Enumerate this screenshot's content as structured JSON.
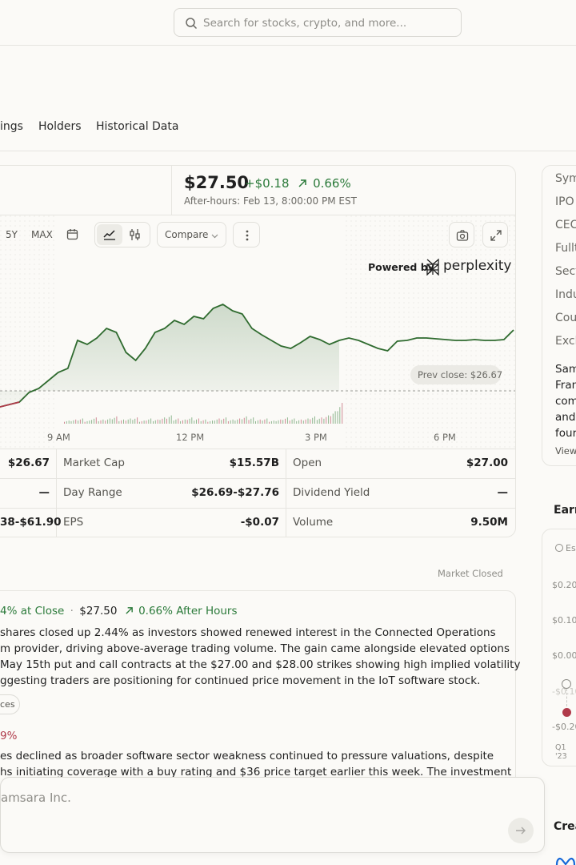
{
  "search": {
    "placeholder": "Search for stocks, crypto, and more..."
  },
  "tabs": [
    "ings",
    "Holders",
    "Historical Data"
  ],
  "quote": {
    "price": "$27.50",
    "change": "+$0.18",
    "change_pct": "0.66%",
    "after_hours": "After-hours: Feb 13, 8:00:00 PM EST"
  },
  "toolbar": {
    "ranges": [
      "5Y",
      "MAX"
    ],
    "compare": "Compare",
    "powered_by": "Powered by",
    "brand": "perplexity"
  },
  "chart_data": {
    "type": "line",
    "x_ticks": [
      "9 AM",
      "12 PM",
      "3 PM",
      "6 PM"
    ],
    "prev_close_label": "Prev close: $26.67",
    "prev_close": 26.67,
    "series": [
      {
        "values": [
          26.62,
          26.65,
          26.68,
          26.8,
          26.85,
          26.95,
          27.05,
          27.1,
          27.45,
          27.4,
          27.48,
          27.6,
          27.55,
          27.3,
          27.2,
          27.35,
          27.55,
          27.6,
          27.7,
          27.65,
          27.75,
          27.72,
          27.85,
          27.9,
          27.82,
          27.78,
          27.6,
          27.52,
          27.45,
          27.38,
          27.35,
          27.42,
          27.5,
          27.46,
          27.4,
          27.45,
          27.48,
          27.45,
          27.4,
          27.35,
          27.32,
          27.44,
          27.45,
          27.48,
          27.48,
          27.47,
          27.46,
          27.45,
          27.45,
          27.46,
          27.45,
          27.45,
          27.46,
          27.58
        ]
      }
    ],
    "volume": [
      3,
      4,
      5,
      3,
      6,
      4,
      5,
      7,
      4,
      5,
      6,
      3,
      5,
      4,
      6,
      8,
      5,
      4,
      6,
      5,
      4,
      3,
      5,
      6,
      4,
      5,
      7,
      6,
      4,
      5,
      3,
      4,
      6,
      5,
      4,
      5,
      7,
      6,
      8,
      12,
      20
    ]
  },
  "stats": [
    {
      "label": "",
      "value": "$26.67"
    },
    {
      "label": "Market Cap",
      "value": "$15.57B"
    },
    {
      "label": "Open",
      "value": "$27.00"
    },
    {
      "label": "",
      "value": "—"
    },
    {
      "label": "Day Range",
      "value": "$26.69-$27.76"
    },
    {
      "label": "Dividend Yield",
      "value": "—"
    },
    {
      "label": "",
      "value": "38-$61.90"
    },
    {
      "label": "EPS",
      "value": "-$0.07"
    },
    {
      "label": "Volume",
      "value": "9.50M"
    }
  ],
  "market_status": "Market Closed",
  "news": {
    "headline_change": "4% at Close",
    "headline_sep": "·",
    "headline_price": "$27.50",
    "headline_ah": "0.66% After Hours",
    "body1": [
      "shares closed up 2.44% as investors showed renewed interest in the Connected Operations",
      "m provider, driving above-average trading volume. The gain came alongside elevated options",
      "May 15th put and call contracts at the $27.00 and $28.00 strikes showing high implied volatility",
      "ggesting traders are positioning for continued price movement in the IoT software stock."
    ],
    "chip": "ces",
    "second_change": "9%",
    "body2": [
      "es declined as broader software sector weakness continued to pressure valuations, despite",
      "hs initiating coverage with a buy rating and $36 price target earlier this week. The investment"
    ]
  },
  "ask": {
    "placeholder": "amsara Inc."
  },
  "right_panel": {
    "items": [
      "Sym",
      "IPO",
      "CEC",
      "Fullt",
      "Sect",
      "Indu",
      "Cou",
      "Exch"
    ],
    "about": [
      "Sam",
      "Fran",
      "com",
      "and",
      "four"
    ],
    "view": "View",
    "earnings_title": "Earr",
    "earnings_legend": "Es",
    "y_ticks": [
      "$0.20",
      "$0.10",
      "$0.00",
      "-$0.10",
      "-$0.20"
    ],
    "x_tick": "Q1 '23",
    "create": "Crea"
  },
  "colors": {
    "up": "#2b7a3a",
    "down": "#b03a4a",
    "line": "#2f6b2f"
  }
}
